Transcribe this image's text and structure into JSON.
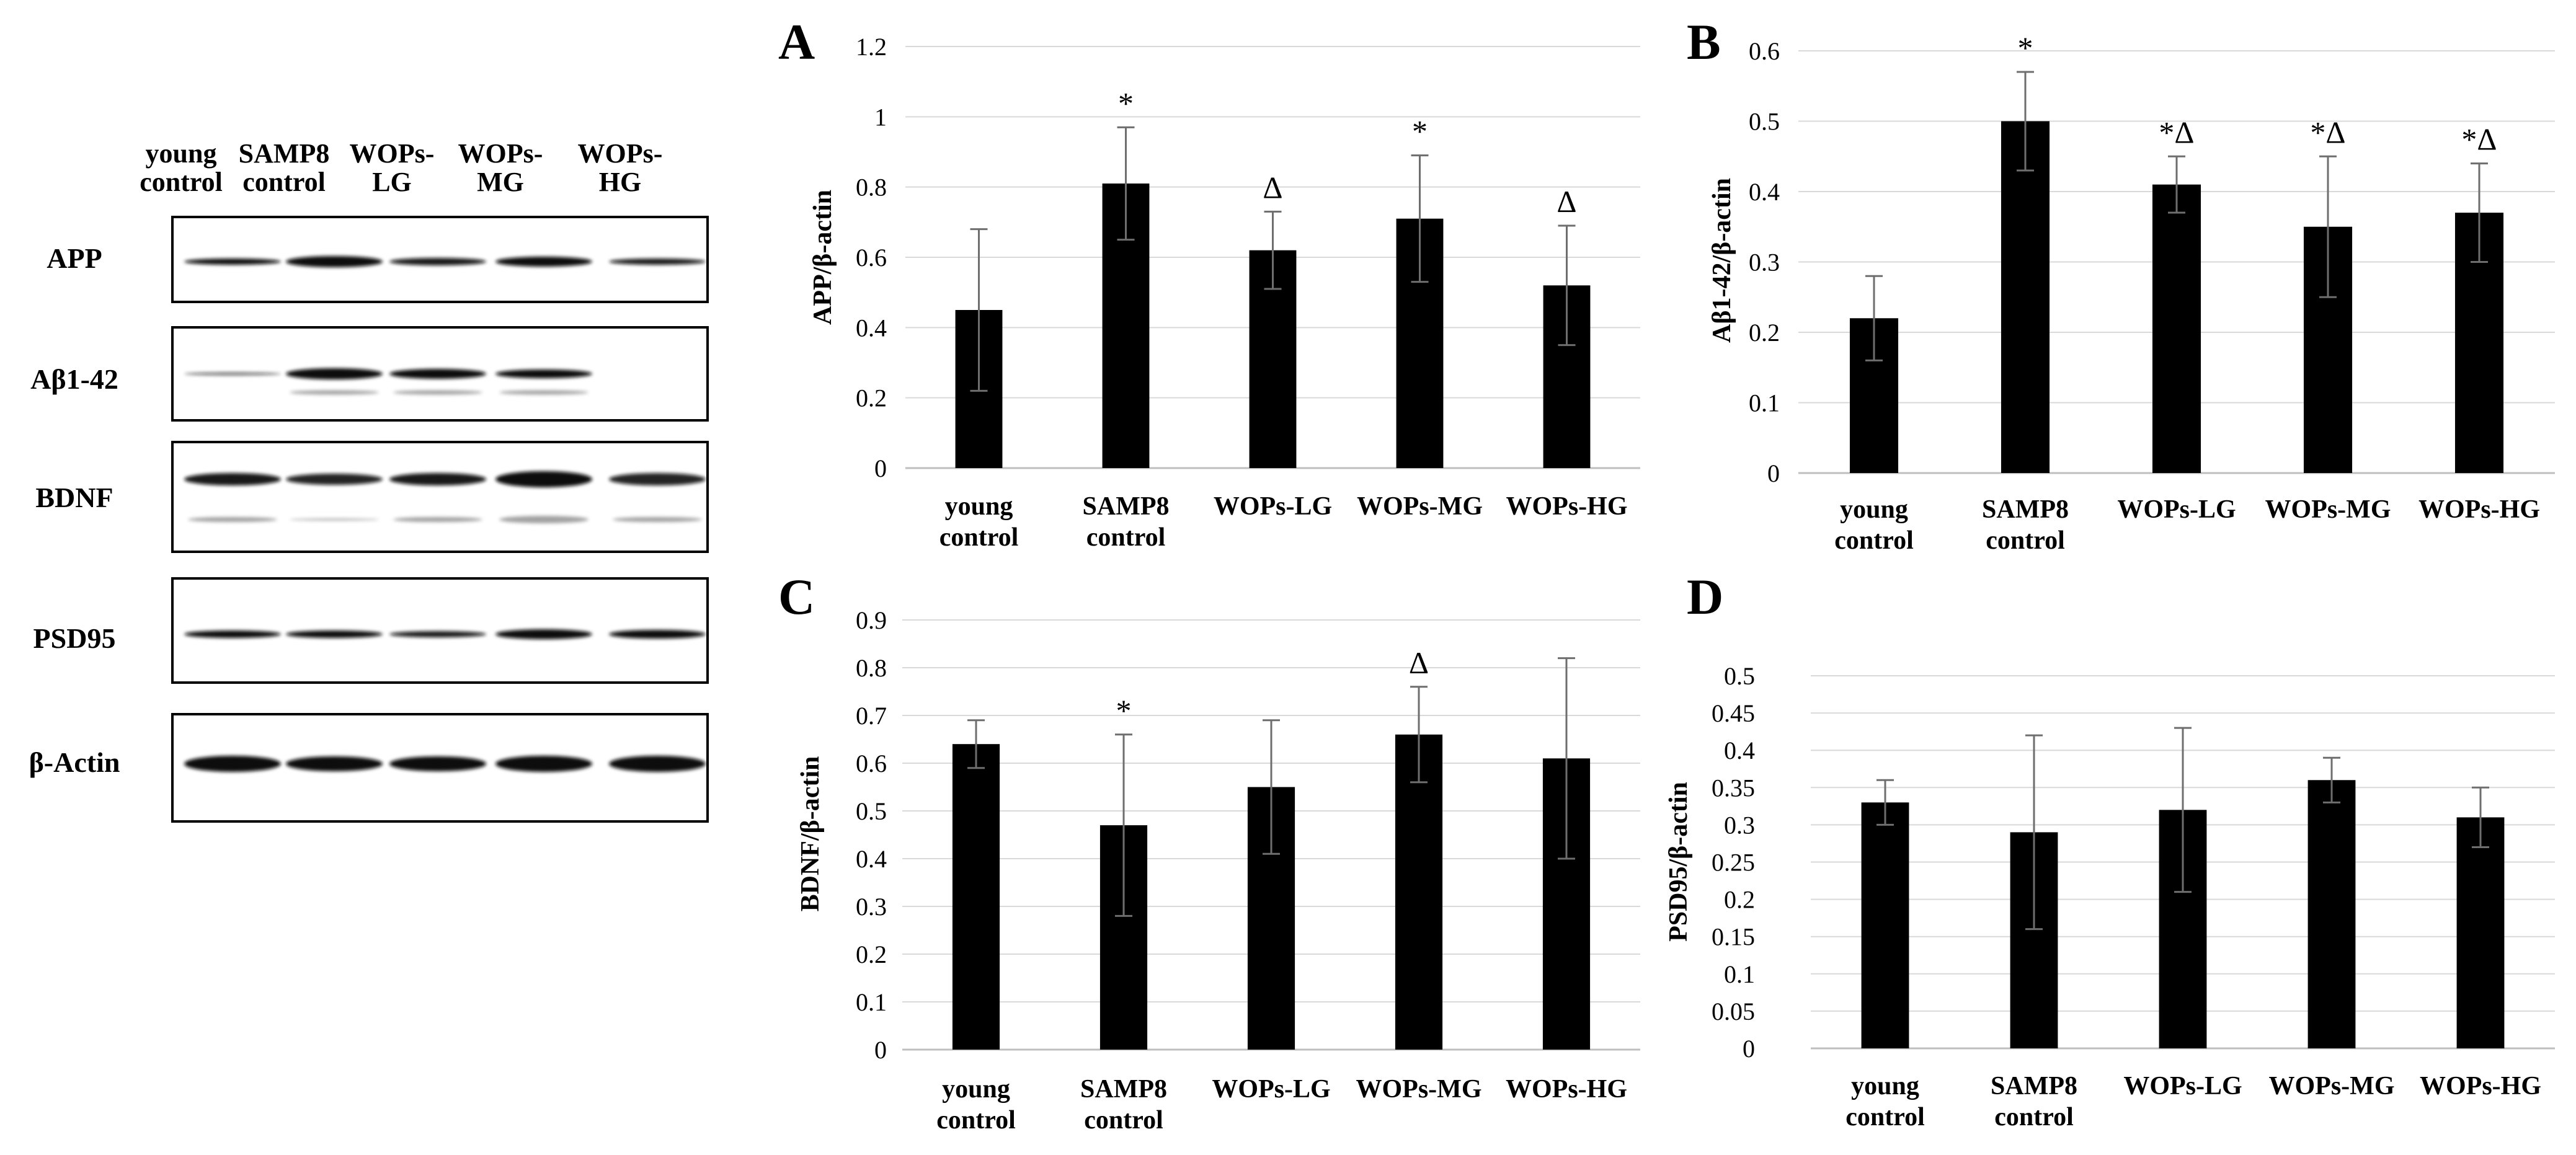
{
  "western_blot": {
    "lanes": [
      [
        "young",
        "control"
      ],
      [
        "SAMP8",
        "control"
      ],
      [
        "WOPs-",
        "LG"
      ],
      [
        "WOPs-",
        "MG"
      ],
      [
        "WOPs-",
        "HG"
      ]
    ],
    "proteins": [
      "APP",
      "Aβ1-42",
      "BDNF",
      "PSD95",
      "β-Actin"
    ]
  },
  "chart_data": [
    {
      "panel": "A",
      "type": "bar",
      "categories": [
        [
          "young",
          "control"
        ],
        [
          "SAMP8",
          "control"
        ],
        [
          "WOPs-LG"
        ],
        [
          "WOPs-MG"
        ],
        [
          "WOPs-HG"
        ]
      ],
      "values": [
        0.45,
        0.81,
        0.62,
        0.71,
        0.52
      ],
      "errors": [
        0.23,
        0.16,
        0.11,
        0.18,
        0.17
      ],
      "markers": [
        "",
        "*",
        "Δ",
        "*",
        "Δ"
      ],
      "ylabel": "APP/β-actin",
      "ylim": [
        0,
        1.2
      ],
      "yticks": [
        "0",
        "0.2",
        "0.4",
        "0.6",
        "0.8",
        "1",
        "1.2"
      ],
      "grid": true
    },
    {
      "panel": "B",
      "type": "bar",
      "categories": [
        [
          "young",
          "control"
        ],
        [
          "SAMP8",
          "control"
        ],
        [
          "WOPs-LG"
        ],
        [
          "WOPs-MG"
        ],
        [
          "WOPs-HG"
        ]
      ],
      "values": [
        0.22,
        0.5,
        0.41,
        0.35,
        0.37
      ],
      "errors": [
        0.06,
        0.07,
        0.04,
        0.1,
        0.07
      ],
      "markers": [
        "",
        "*",
        "*Δ",
        "*Δ",
        "*Δ"
      ],
      "ylabel": "Aβ1-42/β-actin",
      "ylim": [
        0,
        0.6
      ],
      "yticks": [
        "0",
        "0.1",
        "0.2",
        "0.3",
        "0.4",
        "0.5",
        "0.6"
      ],
      "grid": true
    },
    {
      "panel": "C",
      "type": "bar",
      "categories": [
        [
          "young",
          "control"
        ],
        [
          "SAMP8",
          "control"
        ],
        [
          "WOPs-LG"
        ],
        [
          "WOPs-MG"
        ],
        [
          "WOPs-HG"
        ]
      ],
      "values": [
        0.64,
        0.47,
        0.55,
        0.66,
        0.61
      ],
      "errors": [
        0.05,
        0.19,
        0.14,
        0.1,
        0.21
      ],
      "markers": [
        "",
        "*",
        "",
        "Δ",
        ""
      ],
      "ylabel": "BDNF/β-actin",
      "ylim": [
        0,
        0.9
      ],
      "yticks": [
        "0",
        "0.1",
        "0.2",
        "0.3",
        "0.4",
        "0.5",
        "0.6",
        "0.7",
        "0.8",
        "0.9"
      ],
      "grid": true
    },
    {
      "panel": "D",
      "type": "bar",
      "categories": [
        [
          "young",
          "control"
        ],
        [
          "SAMP8",
          "control"
        ],
        [
          "WOPs-LG"
        ],
        [
          "WOPs-MG"
        ],
        [
          "WOPs-HG"
        ]
      ],
      "values": [
        0.33,
        0.29,
        0.32,
        0.36,
        0.31
      ],
      "errors": [
        0.03,
        0.13,
        0.11,
        0.03,
        0.04
      ],
      "markers": [
        "",
        "",
        "",
        "",
        ""
      ],
      "ylabel": "PSD95/β-actin",
      "ylim": [
        0,
        0.5
      ],
      "yticks": [
        "0",
        "0.05",
        "0.1",
        "0.15",
        "0.2",
        "0.25",
        "0.3",
        "0.35",
        "0.4",
        "0.45",
        "0.5"
      ],
      "grid": true
    }
  ]
}
